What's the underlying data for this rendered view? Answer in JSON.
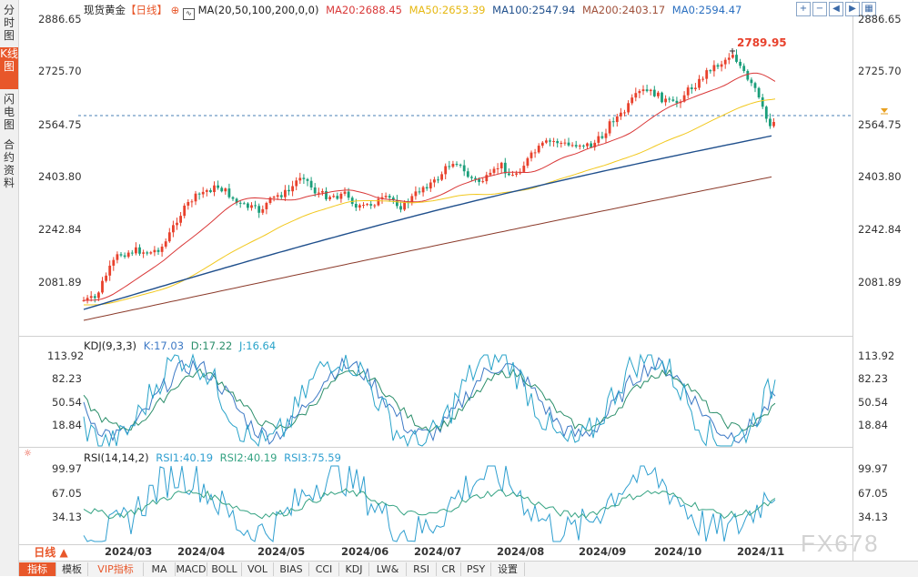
{
  "sidebar": {
    "tabs": [
      {
        "label": "分时图",
        "active": false
      },
      {
        "label": "K线图",
        "active": true
      },
      {
        "label": "闪电图",
        "active": false
      },
      {
        "label": "合约资料",
        "active": false
      }
    ]
  },
  "header": {
    "symbol": "现货黄金",
    "period": "【日线】",
    "ma_params": "MA(20,50,100,200,0,0)",
    "ma20": "MA20:2688.45",
    "ma50": "MA50:2653.39",
    "ma100": "MA100:2547.94",
    "ma200": "MA200:2403.17",
    "ma0": "MA0:2594.47"
  },
  "toolbar": {
    "buttons": [
      "plus-icon",
      "minus-icon",
      "left-icon",
      "right-icon",
      "settings-icon"
    ]
  },
  "price_axis": {
    "ticks": [
      "2886.65",
      "2725.70",
      "2564.75",
      "2403.80",
      "2242.84",
      "2081.89"
    ],
    "right_ticks": [
      "2886.65",
      "2725.70",
      "2564.75",
      "2403.80",
      "2242.84",
      "2081.89"
    ],
    "max_label": "2789.95"
  },
  "kdj": {
    "title": "KDJ(9,3,3)",
    "k": "K:17.03",
    "d": "D:17.22",
    "j": "J:16.64",
    "ticks": [
      "113.92",
      "82.23",
      "50.54",
      "18.84"
    ]
  },
  "rsi": {
    "title": "RSI(14,14,2)",
    "rsi1": "RSI1:40.19",
    "rsi2": "RSI2:40.19",
    "rsi3": "RSI3:75.59",
    "ticks": [
      "99.97",
      "67.05",
      "34.13"
    ]
  },
  "x_axis": {
    "period_button": "日线",
    "labels": [
      "2024/03",
      "2024/04",
      "2024/05",
      "2024/06",
      "2024/07",
      "2024/08",
      "2024/09",
      "2024/10",
      "2024/11"
    ]
  },
  "bottom_tabs": [
    "指标",
    "模板",
    "VIP指标",
    "MA",
    "MACD",
    "BOLL",
    "VOL",
    "BIAS",
    "CCI",
    "KDJ",
    "LW&",
    "RSI",
    "CR",
    "PSY",
    "设置"
  ],
  "watermark": "FX678",
  "colors": {
    "up": "#e8412c",
    "down": "#1a9e7a",
    "ma20": "#d93838",
    "ma50": "#f2c81e",
    "ma100": "#1f4f8c",
    "ma200": "#8b3a2a",
    "accent": "#e8572a"
  }
}
